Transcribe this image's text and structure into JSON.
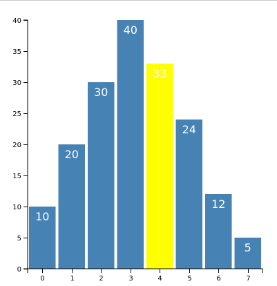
{
  "chart_data": {
    "type": "bar",
    "categories": [
      "0",
      "1",
      "2",
      "3",
      "4",
      "5",
      "6",
      "7"
    ],
    "values": [
      10,
      20,
      30,
      40,
      33,
      24,
      12,
      5
    ],
    "ylim": [
      0,
      40
    ],
    "yticks": [
      "0",
      "5",
      "10",
      "15",
      "20",
      "25",
      "30",
      "35",
      "40"
    ],
    "data_labels": [
      "10",
      "20",
      "30",
      "40",
      "33",
      "24",
      "12",
      "5"
    ],
    "grid": false,
    "highlight_index": 4,
    "colors": {
      "bar": "#4682b4",
      "highlight": "#ffff00",
      "label": "#ffffff"
    }
  }
}
